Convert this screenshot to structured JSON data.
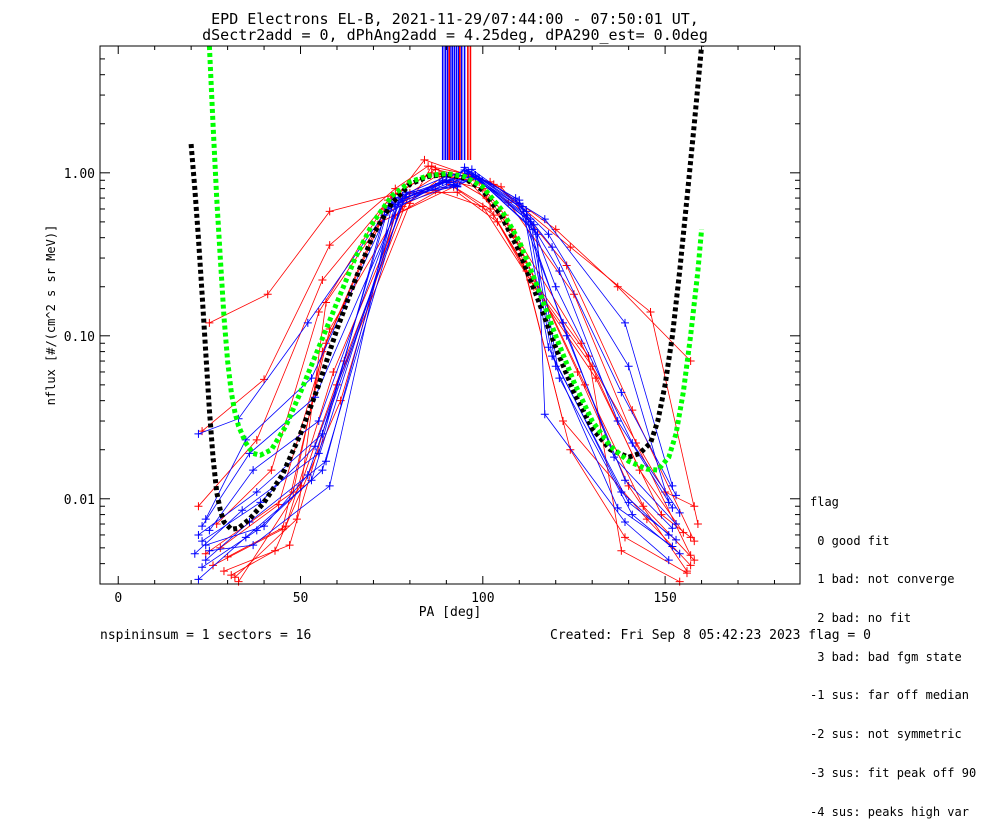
{
  "title": {
    "line1": "EPD Electrons EL-B, 2021-11-29/07:44:00 - 07:50:01 UT,",
    "line2": "dSectr2add = 0, dPhAng2add = 4.25deg, dPA290_est=   0.0deg"
  },
  "footer": {
    "left": "nspininsum =  1  sectors = 16",
    "right": "Created: Fri Sep  8 05:42:23 2023   flag = 0"
  },
  "legend": {
    "title": "flag",
    "items": [
      " 0 good fit",
      " 1 bad: not converge",
      " 2 bad: no fit",
      " 3 bad: bad fgm state",
      "-1 sus: far off median",
      "-2 sus: not symmetric",
      "-3 sus: fit peak off 90",
      "-4 sus: peaks high var"
    ]
  },
  "chart_data": {
    "type": "line",
    "xlabel": "PA [deg]",
    "ylabel": "nflux [#/(cm^2 s sr MeV)]",
    "xlim": [
      -5,
      187
    ],
    "ylim": [
      0.003,
      6
    ],
    "yscale": "log",
    "xticks": [
      0,
      50,
      100,
      150
    ],
    "yticks": [
      {
        "value": 0.01,
        "label": "0.01"
      },
      {
        "value": 0.1,
        "label": "0.10"
      },
      {
        "value": 1,
        "label": "1.00"
      }
    ],
    "colors": {
      "red": "#ff0000",
      "blue": "#0000ff",
      "green": "#00ff00",
      "black": "#000000"
    },
    "fit_curves": [
      {
        "color": "black",
        "x": [
          20,
          21,
          22,
          23,
          24,
          25,
          26,
          27,
          28,
          29,
          31,
          33,
          36,
          40,
          45,
          50,
          55,
          60,
          65,
          70,
          75,
          80,
          85,
          90,
          95,
          100,
          105,
          110,
          115,
          120,
          125,
          130,
          135,
          140,
          143,
          146,
          148,
          150,
          152,
          154,
          156,
          158,
          160
        ],
        "y": [
          1.5,
          0.8,
          0.4,
          0.18,
          0.08,
          0.035,
          0.018,
          0.011,
          0.0085,
          0.0072,
          0.0065,
          0.0066,
          0.0075,
          0.0095,
          0.014,
          0.025,
          0.05,
          0.11,
          0.22,
          0.42,
          0.65,
          0.85,
          0.95,
          0.98,
          0.93,
          0.78,
          0.55,
          0.33,
          0.17,
          0.085,
          0.045,
          0.027,
          0.02,
          0.018,
          0.019,
          0.022,
          0.03,
          0.05,
          0.1,
          0.25,
          0.7,
          2.0,
          6.0
        ]
      },
      {
        "color": "green",
        "x": [
          25,
          26,
          27,
          28,
          29,
          30,
          31,
          32,
          33,
          35,
          37,
          39,
          42,
          46,
          50,
          55,
          60,
          65,
          70,
          75,
          80,
          85,
          90,
          95,
          100,
          105,
          110,
          115,
          120,
          125,
          130,
          135,
          140,
          145,
          148,
          151,
          153,
          155,
          157,
          159,
          160
        ],
        "y": [
          6,
          2.0,
          0.7,
          0.3,
          0.13,
          0.07,
          0.045,
          0.034,
          0.028,
          0.022,
          0.019,
          0.0185,
          0.02,
          0.028,
          0.045,
          0.085,
          0.16,
          0.3,
          0.5,
          0.72,
          0.88,
          0.96,
          0.99,
          0.95,
          0.82,
          0.6,
          0.38,
          0.2,
          0.1,
          0.052,
          0.03,
          0.021,
          0.017,
          0.0152,
          0.015,
          0.018,
          0.025,
          0.045,
          0.1,
          0.25,
          0.45
        ]
      }
    ],
    "red_series": [
      {
        "x": [
          25,
          41,
          58,
          77,
          84,
          97,
          102,
          120,
          137,
          157
        ],
        "y": [
          0.12,
          0.18,
          0.58,
          0.75,
          1.2,
          0.95,
          0.88,
          0.45,
          0.2,
          0.07
        ]
      },
      {
        "x": [
          23,
          40,
          58,
          76,
          85,
          96,
          103,
          124,
          146,
          159
        ],
        "y": [
          0.026,
          0.054,
          0.36,
          0.8,
          1.1,
          0.98,
          0.85,
          0.35,
          0.14,
          0.007
        ]
      },
      {
        "x": [
          22,
          38,
          56,
          75,
          86,
          97,
          105,
          123,
          141,
          158
        ],
        "y": [
          0.009,
          0.023,
          0.22,
          0.72,
          1.0,
          0.95,
          0.82,
          0.27,
          0.035,
          0.0055
        ]
      },
      {
        "x": [
          27,
          42,
          55,
          74,
          87,
          98,
          107,
          125,
          142,
          157
        ],
        "y": [
          0.007,
          0.015,
          0.14,
          0.68,
          1.05,
          0.92,
          0.66,
          0.18,
          0.022,
          0.0045
        ]
      },
      {
        "x": [
          28,
          44,
          57,
          73,
          88,
          99,
          106,
          126,
          140,
          156
        ],
        "y": [
          0.005,
          0.0092,
          0.09,
          0.6,
          0.98,
          0.88,
          0.55,
          0.06,
          0.012,
          0.0036
        ]
      },
      {
        "x": [
          30,
          46,
          59,
          78,
          89,
          96,
          108,
          127,
          143,
          155
        ],
        "y": [
          0.0044,
          0.0068,
          0.06,
          0.62,
          0.95,
          0.9,
          0.45,
          0.09,
          0.015,
          0.0062
        ]
      },
      {
        "x": [
          26,
          45,
          58,
          79,
          90,
          100,
          109,
          128,
          144,
          158
        ],
        "y": [
          0.0039,
          0.0065,
          0.11,
          0.7,
          0.9,
          0.8,
          0.4,
          0.05,
          0.009,
          0.0042
        ]
      },
      {
        "x": [
          29,
          47,
          60,
          80,
          86,
          101,
          110,
          122,
          145,
          157
        ],
        "y": [
          0.0036,
          0.0052,
          0.05,
          0.65,
          1.1,
          0.7,
          0.35,
          0.03,
          0.0075,
          0.0039
        ]
      },
      {
        "x": [
          31,
          43,
          61,
          76,
          91,
          102,
          111,
          124,
          139,
          156
        ],
        "y": [
          0.0034,
          0.0048,
          0.04,
          0.55,
          0.85,
          0.6,
          0.28,
          0.02,
          0.0058,
          0.0035
        ]
      },
      {
        "x": [
          24,
          48,
          56,
          72,
          92,
          103,
          112,
          129,
          138,
          154
        ],
        "y": [
          0.0046,
          0.011,
          0.08,
          0.5,
          0.82,
          0.55,
          0.25,
          0.075,
          0.0048,
          0.0031
        ]
      },
      {
        "x": [
          32,
          49,
          57,
          74,
          87,
          100,
          113,
          130,
          150,
          158
        ],
        "y": [
          0.0033,
          0.0075,
          0.16,
          0.58,
          0.78,
          0.62,
          0.22,
          0.065,
          0.011,
          0.009
        ]
      },
      {
        "x": [
          33,
          50,
          62,
          80,
          93,
          104,
          114,
          131,
          149,
          157
        ],
        "y": [
          0.0031,
          0.012,
          0.07,
          0.75,
          0.76,
          0.5,
          0.2,
          0.055,
          0.008,
          0.0058
        ]
      }
    ],
    "blue_series": [
      {
        "x": [
          22,
          33,
          52,
          76,
          90,
          97,
          110,
          117,
          139,
          152
        ],
        "y": [
          0.025,
          0.031,
          0.12,
          0.7,
          0.95,
          1.05,
          0.65,
          0.52,
          0.12,
          0.012
        ]
      },
      {
        "x": [
          24,
          35,
          53,
          75,
          91,
          96,
          111,
          118,
          140,
          151
        ],
        "y": [
          0.0075,
          0.023,
          0.055,
          0.65,
          0.9,
          1.0,
          0.6,
          0.42,
          0.065,
          0.0095
        ]
      },
      {
        "x": [
          23,
          36,
          54,
          78,
          89,
          98,
          112,
          119,
          138,
          153
        ],
        "y": [
          0.0068,
          0.019,
          0.042,
          0.72,
          0.88,
          0.95,
          0.55,
          0.35,
          0.045,
          0.0105
        ]
      },
      {
        "x": [
          25,
          37,
          55,
          77,
          88,
          99,
          113,
          121,
          137,
          152
        ],
        "y": [
          0.0064,
          0.015,
          0.03,
          0.68,
          0.86,
          0.92,
          0.5,
          0.25,
          0.03,
          0.0088
        ]
      },
      {
        "x": [
          22,
          38,
          56,
          74,
          92,
          95,
          114,
          120,
          141,
          154
        ],
        "y": [
          0.006,
          0.011,
          0.025,
          0.6,
          0.84,
          1.08,
          0.45,
          0.2,
          0.022,
          0.0082
        ]
      },
      {
        "x": [
          23,
          39,
          54,
          79,
          93,
          96,
          109,
          122,
          136,
          153
        ],
        "y": [
          0.0055,
          0.0095,
          0.021,
          0.74,
          0.82,
          1.02,
          0.7,
          0.12,
          0.018,
          0.007
        ]
      },
      {
        "x": [
          21,
          34,
          55,
          73,
          90,
          97,
          110,
          123,
          139,
          152
        ],
        "y": [
          0.0046,
          0.0085,
          0.019,
          0.55,
          0.9,
          1.0,
          0.68,
          0.1,
          0.013,
          0.0066
        ]
      },
      {
        "x": [
          24,
          36,
          57,
          76,
          91,
          98,
          111,
          118,
          138,
          151
        ],
        "y": [
          0.0042,
          0.0072,
          0.017,
          0.64,
          0.87,
          0.97,
          0.62,
          0.085,
          0.011,
          0.006
        ]
      },
      {
        "x": [
          23,
          38,
          56,
          78,
          92,
          99,
          112,
          119,
          140,
          153
        ],
        "y": [
          0.0038,
          0.0064,
          0.015,
          0.7,
          0.85,
          0.93,
          0.58,
          0.075,
          0.0095,
          0.0056
        ]
      },
      {
        "x": [
          22,
          35,
          53,
          77,
          89,
          95,
          113,
          120,
          137,
          152
        ],
        "y": [
          0.0032,
          0.0058,
          0.013,
          0.66,
          0.9,
          1.04,
          0.52,
          0.065,
          0.0088,
          0.0051
        ]
      },
      {
        "x": [
          25,
          37,
          58,
          75,
          90,
          96,
          114,
          121,
          141,
          154
        ],
        "y": [
          0.0048,
          0.0052,
          0.012,
          0.62,
          0.88,
          1.0,
          0.48,
          0.055,
          0.008,
          0.0046
        ]
      },
      {
        "x": [
          24,
          40,
          52,
          79,
          93,
          98,
          115,
          117,
          139,
          151
        ],
        "y": [
          0.0052,
          0.0068,
          0.014,
          0.76,
          0.83,
          0.95,
          0.42,
          0.033,
          0.0072,
          0.0042
        ]
      }
    ],
    "top_spikes": [
      {
        "color": "blue",
        "x": [
          89,
          89.7,
          90.3,
          91,
          91.6,
          92.2,
          92.8,
          93.4,
          94.2,
          95
        ]
      },
      {
        "color": "red",
        "x": [
          90.8,
          93.7,
          95.9,
          96.6
        ]
      }
    ]
  }
}
